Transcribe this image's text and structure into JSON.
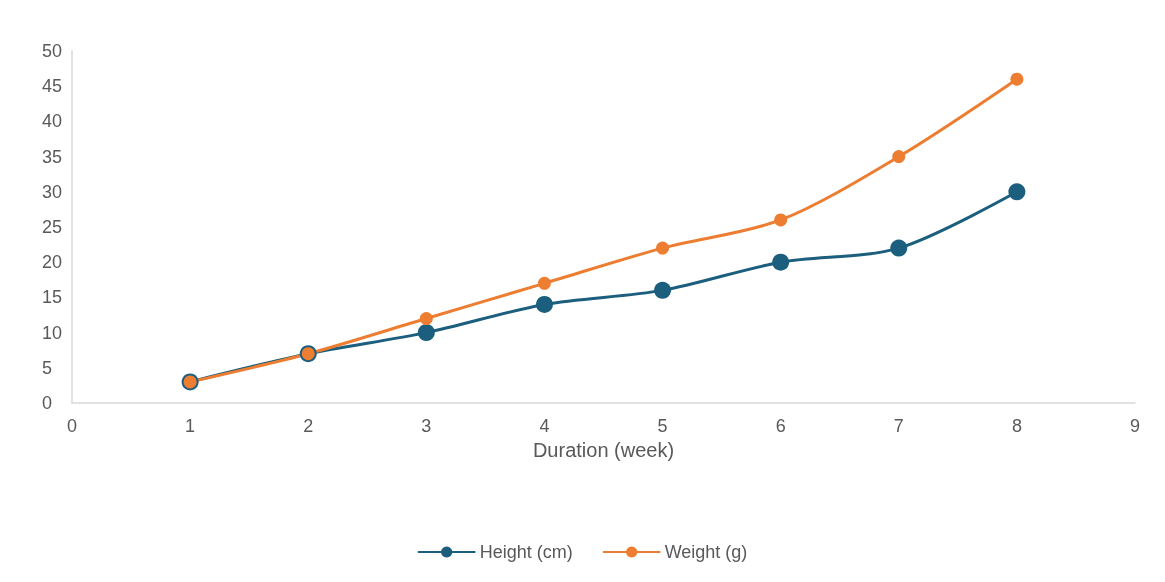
{
  "chart_data": {
    "type": "line",
    "xlabel": "Duration (week)",
    "x": [
      1,
      2,
      3,
      4,
      5,
      6,
      7,
      8
    ],
    "series": [
      {
        "name": "Height (cm)",
        "color": "#1b5e7e",
        "values": [
          3,
          7,
          10,
          14,
          16,
          20,
          22,
          30
        ]
      },
      {
        "name": "Weight (g)",
        "color": "#ed7d31",
        "values": [
          3,
          7,
          12,
          17,
          22,
          26,
          35,
          46
        ]
      }
    ],
    "xlim": [
      0,
      9
    ],
    "xticks": [
      0,
      1,
      2,
      3,
      4,
      5,
      6,
      7,
      8,
      9
    ],
    "ylim": [
      0,
      50
    ],
    "yticks": [
      0,
      5,
      10,
      15,
      20,
      25,
      30,
      35,
      40,
      45,
      50
    ],
    "grid": false,
    "legend": "bottom",
    "marker": "circle",
    "line_style": "solid"
  }
}
